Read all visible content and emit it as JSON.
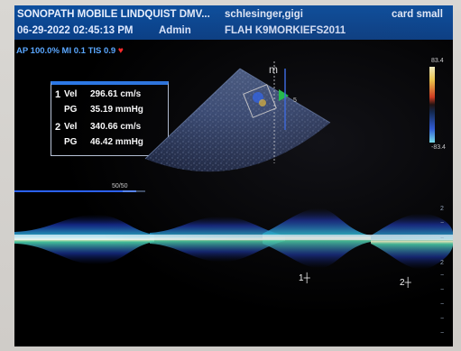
{
  "header": {
    "practice": "SONOPATH MOBILE LINDQUIST DMV...",
    "patient": "schlesinger,gigi",
    "preset": "card small",
    "datetime": "06-29-2022 02:45:13 PM",
    "operator": "Admin",
    "exam_id": "FLAH K9MORKIEFS2011"
  },
  "status": {
    "text": "AP 100.0%  MI 0.1  TIS 0.9",
    "heart_icon": "heart-icon",
    "heart_color": "#ff2a2a"
  },
  "measurements": [
    {
      "index": "1",
      "vel_label": "Vel",
      "vel_value": "296.61 cm/s",
      "pg_label": "PG",
      "pg_value": "35.19 mmHg"
    },
    {
      "index": "2",
      "vel_label": "Vel",
      "vel_value": "340.66 cm/s",
      "pg_label": "PG",
      "pg_value": "46.42 mmHg"
    }
  ],
  "color_scale": {
    "top": "83.4",
    "bottom": "-83.4"
  },
  "image_markers": {
    "mode_letter": "m",
    "depth_mark": "5"
  },
  "doppler": {
    "sweep_label": "50/50",
    "trace_markers": [
      "1",
      "2"
    ],
    "axis_ticks": [
      "2",
      "−",
      "−",
      "2",
      "−",
      "−",
      "−",
      "−",
      "−"
    ]
  },
  "colors": {
    "header_bg": "#0d4f9e",
    "accent_blue": "#2c78e6",
    "status_text": "#5aa7ff"
  }
}
